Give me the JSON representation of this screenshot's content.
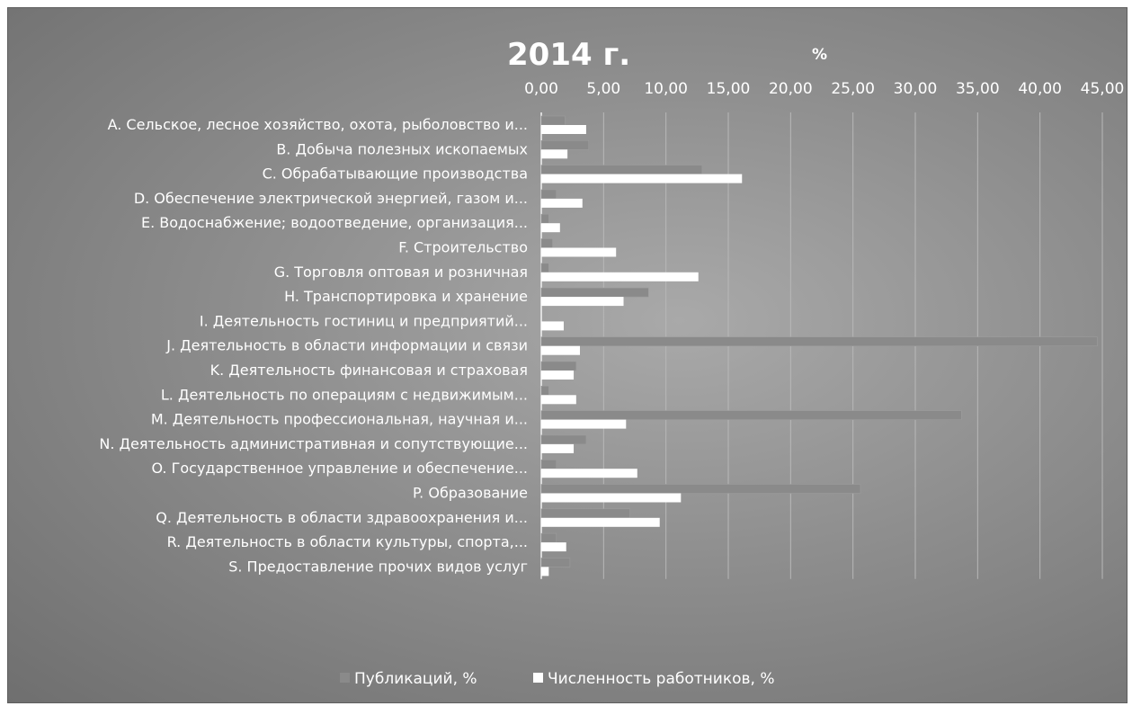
{
  "chart_data": {
    "type": "bar",
    "orientation": "horizontal",
    "title": "2014 г.",
    "axis_unit": "%",
    "xlim": [
      0,
      45
    ],
    "x_ticks": [
      "0,00",
      "5,00",
      "10,00",
      "15,00",
      "20,00",
      "25,00",
      "30,00",
      "35,00",
      "40,00",
      "45,00"
    ],
    "x_axis_position": "top",
    "grid": true,
    "legend_position": "bottom",
    "categories": [
      "A. Сельское, лесное хозяйство, охота, рыболовство и...",
      "B. Добыча полезных ископаемых",
      "C. Обрабатывающие производства",
      "D. Обеспечение электрической энергией, газом и...",
      "E. Водоснабжение; водоотведение, организация...",
      "F. Строительство",
      "G. Торговля оптовая и розничная",
      "H. Транспортировка и хранение",
      "I. Деятельность гостиниц и предприятий...",
      "J. Деятельность в области информации и связи",
      "K. Деятельность финансовая и страховая",
      "L. Деятельность по операциям с недвижимым...",
      "M. Деятельность профессиональная, научная и...",
      "N. Деятельность административная и сопутствующие...",
      "O. Государственное управление и обеспечение...",
      "P. Образование",
      "Q. Деятельность в области здравоохранения и...",
      "R. Деятельность в области культуры, спорта,...",
      "S. Предоставление прочих видов услуг"
    ],
    "series": [
      {
        "name": "Публикаций, %",
        "color": "#8a8a8a",
        "values": [
          1.9,
          3.8,
          12.9,
          1.2,
          0.6,
          0.9,
          0.6,
          8.6,
          0.0,
          44.6,
          2.8,
          0.6,
          33.7,
          3.6,
          1.2,
          25.6,
          7.1,
          1.2,
          2.3
        ]
      },
      {
        "name": "Численность работников, %",
        "color": "#ffffff",
        "values": [
          3.6,
          2.1,
          16.1,
          3.3,
          1.5,
          6.0,
          12.6,
          6.6,
          1.8,
          3.1,
          2.6,
          2.8,
          6.8,
          2.6,
          7.7,
          11.2,
          9.5,
          2.0,
          0.6
        ]
      }
    ]
  }
}
